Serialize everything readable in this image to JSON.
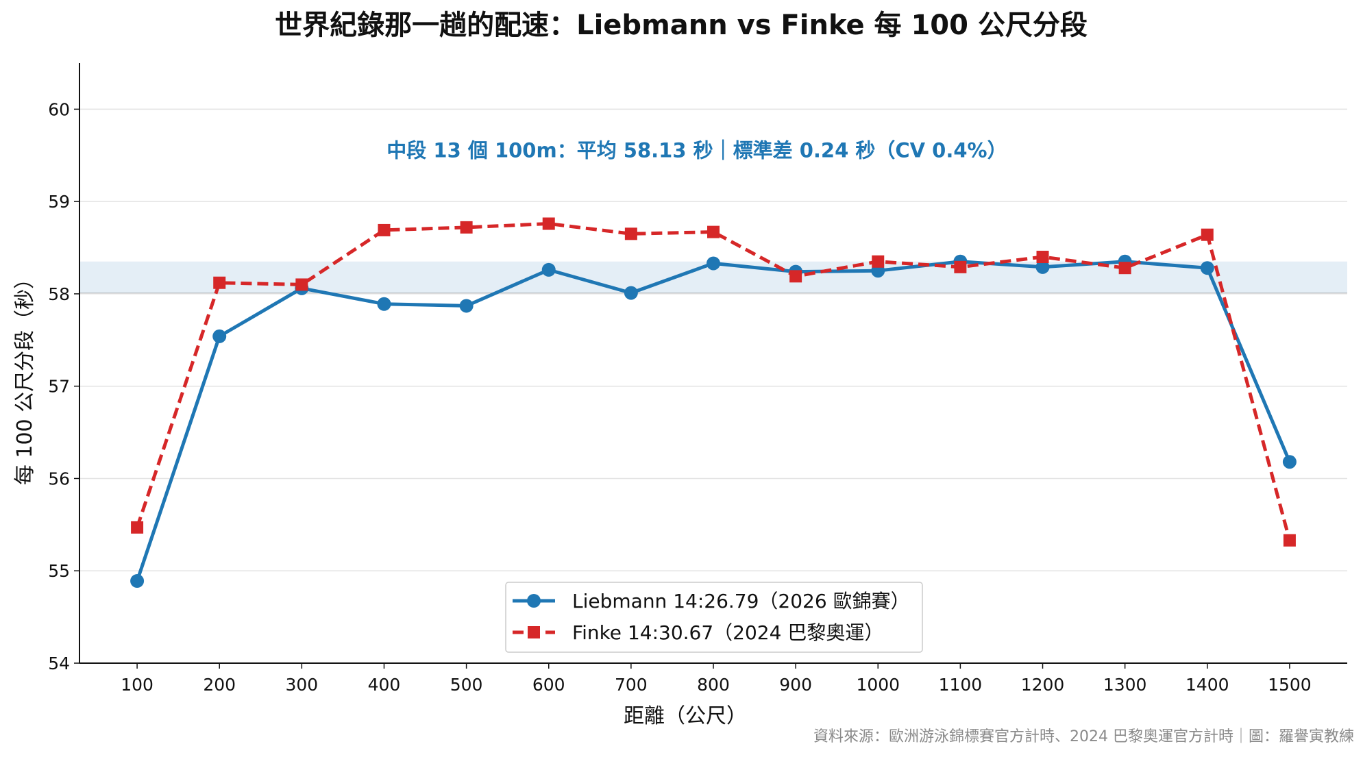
{
  "chart_data": {
    "type": "line",
    "title": "世界紀錄那一趟的配速：Liebmann vs Finke 每 100 公尺分段",
    "xlabel": "距離（公尺）",
    "ylabel": "每 100 公尺分段（秒）",
    "x": [
      100,
      200,
      300,
      400,
      500,
      600,
      700,
      800,
      900,
      1000,
      1100,
      1200,
      1300,
      1400,
      1500
    ],
    "ylim": [
      54,
      60.5
    ],
    "xlim": [
      30,
      1570
    ],
    "yticks": [
      54,
      55,
      56,
      57,
      58,
      59,
      60
    ],
    "grid": "horizontal",
    "legend": "bottom-center",
    "series": [
      {
        "name": "Liebmann 14:26.79（2026 歐錦賽）",
        "color": "#1f77b4",
        "style": "solid",
        "marker": "circle",
        "values": [
          54.89,
          57.54,
          58.06,
          57.89,
          57.87,
          58.26,
          58.01,
          58.33,
          58.24,
          58.25,
          58.35,
          58.29,
          58.35,
          58.28,
          56.18
        ]
      },
      {
        "name": "Finke 14:30.67（2024 巴黎奧運）",
        "color": "#d62728",
        "style": "dashed",
        "marker": "square",
        "values": [
          55.47,
          58.12,
          58.1,
          58.69,
          58.72,
          58.76,
          58.65,
          58.67,
          58.19,
          58.35,
          58.29,
          58.4,
          58.28,
          58.64,
          55.33
        ]
      }
    ],
    "band": {
      "ymin": 58.01,
      "ymax": 58.35,
      "color": "#1f77b4"
    },
    "annotations": [
      {
        "text": "中段 13 個 100m：平均 58.13 秒｜標準差 0.24 秒（CV 0.4%）",
        "x": 780,
        "y": 59.48,
        "color": "#1f77b4"
      }
    ],
    "source": "資料來源：歐洲游泳錦標賽官方計時、2024 巴黎奧運官方計時｜圖：羅譽寅教練"
  }
}
